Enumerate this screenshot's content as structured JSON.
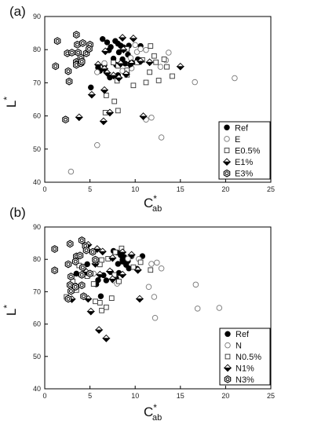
{
  "chart_data": [
    {
      "panel_label": "(a)",
      "type": "scatter",
      "xlabel": "C*ab",
      "xlabel_main": "C",
      "xlabel_sup": "*",
      "xlabel_sub": "ab",
      "ylabel": "L*",
      "ylabel_main": "L",
      "ylabel_sup": "*",
      "xlim": [
        0,
        25
      ],
      "ylim": [
        40,
        90
      ],
      "xticks": [
        "0",
        "5",
        "10",
        "15",
        "20",
        "25"
      ],
      "yticks": [
        "40",
        "50",
        "60",
        "70",
        "80",
        "90"
      ],
      "legend_position": "bottom-right",
      "series": [
        {
          "name": "Ref",
          "marker": "filled-circle",
          "points": [
            [
              6.4,
              83.2
            ],
            [
              6.9,
              82.2
            ],
            [
              7.3,
              80.8
            ],
            [
              7.8,
              82.6
            ],
            [
              8.1,
              81.8
            ],
            [
              8.4,
              81.2
            ],
            [
              8.7,
              80.7
            ],
            [
              7.1,
              79.8
            ],
            [
              8.2,
              79.2
            ],
            [
              9.2,
              78.5
            ],
            [
              7.6,
              77.3
            ],
            [
              8.6,
              77.1
            ],
            [
              6.6,
              75.4
            ],
            [
              5.9,
              74.6
            ],
            [
              7.9,
              75.4
            ],
            [
              8.9,
              75.8
            ],
            [
              9.6,
              76.2
            ],
            [
              10.3,
              77.1
            ],
            [
              10.6,
              81.1
            ],
            [
              9.3,
              81.2
            ],
            [
              8.1,
              72.3
            ],
            [
              7.2,
              71.6
            ],
            [
              6.1,
              73.6
            ],
            [
              5.1,
              68.6
            ]
          ]
        },
        {
          "name": "E",
          "marker": "open-circle",
          "points": [
            [
              5.8,
              51.2
            ],
            [
              2.9,
              43.2
            ],
            [
              12.9,
              53.5
            ],
            [
              11.2,
              58.9
            ],
            [
              11.8,
              59.5
            ],
            [
              16.6,
              70.2
            ],
            [
              21.0,
              71.4
            ],
            [
              12.8,
              74.8
            ],
            [
              13.4,
              76.8
            ],
            [
              13.7,
              79.1
            ],
            [
              10.2,
              79.3
            ],
            [
              11.2,
              79.9
            ],
            [
              10.0,
              81.4
            ],
            [
              9.5,
              77.5
            ],
            [
              8.6,
              73.6
            ],
            [
              5.8,
              73.2
            ],
            [
              6.6,
              75.9
            ],
            [
              9.6,
              74.4
            ],
            [
              10.6,
              80.2
            ]
          ]
        },
        {
          "name": "E0.5%",
          "marker": "open-square",
          "points": [
            [
              6.7,
              61.0
            ],
            [
              8.1,
              61.6
            ],
            [
              7.7,
              64.4
            ],
            [
              6.8,
              66.2
            ],
            [
              9.8,
              69.2
            ],
            [
              8.0,
              70.6
            ],
            [
              11.2,
              70.1
            ],
            [
              12.6,
              70.7
            ],
            [
              14.1,
              72.0
            ],
            [
              11.6,
              73.2
            ],
            [
              12.3,
              76.2
            ],
            [
              13.2,
              77.1
            ],
            [
              12.1,
              78.1
            ],
            [
              13.5,
              74.8
            ],
            [
              9.1,
              73.8
            ],
            [
              9.1,
              72.4
            ],
            [
              8.1,
              75.1
            ],
            [
              7.6,
              76.1
            ],
            [
              9.1,
              80.2
            ],
            [
              10.2,
              76.1
            ],
            [
              10.8,
              76.9
            ],
            [
              11.7,
              81.1
            ]
          ]
        },
        {
          "name": "E1%",
          "marker": "half-diamond",
          "points": [
            [
              6.5,
              58.4
            ],
            [
              10.9,
              59.9
            ],
            [
              3.8,
              59.6
            ],
            [
              7.2,
              61.0
            ],
            [
              5.2,
              66.4
            ],
            [
              6.6,
              67.8
            ],
            [
              9.4,
              75.6
            ],
            [
              6.9,
              73.0
            ],
            [
              7.6,
              72.2
            ],
            [
              8.2,
              71.5
            ],
            [
              9.0,
              72.6
            ],
            [
              9.6,
              75.9
            ],
            [
              10.6,
              76.5
            ],
            [
              11.6,
              76.2
            ],
            [
              6.6,
              74.2
            ],
            [
              5.9,
              75.5
            ],
            [
              15.0,
              74.9
            ],
            [
              8.7,
              80.0
            ],
            [
              9.8,
              83.4
            ],
            [
              8.6,
              83.6
            ],
            [
              8.4,
              75.8
            ],
            [
              6.7,
              79.5
            ]
          ]
        },
        {
          "name": "E3%",
          "marker": "dot-hexagon",
          "points": [
            [
              1.4,
              82.6
            ],
            [
              3.5,
              84.5
            ],
            [
              5.0,
              81.5
            ],
            [
              1.2,
              75.0
            ],
            [
              2.5,
              78.9
            ],
            [
              3.0,
              79.1
            ],
            [
              3.7,
              79.1
            ],
            [
              4.6,
              78.9
            ],
            [
              4.0,
              77.6
            ],
            [
              3.5,
              76.3
            ],
            [
              3.5,
              75.4
            ],
            [
              4.0,
              75.9
            ],
            [
              4.9,
              80.2
            ],
            [
              2.6,
              73.5
            ],
            [
              3.6,
              81.5
            ],
            [
              2.7,
              70.4
            ],
            [
              2.3,
              58.9
            ],
            [
              4.2,
              82.0
            ],
            [
              4.1,
              76.4
            ]
          ]
        }
      ]
    },
    {
      "panel_label": "(b)",
      "type": "scatter",
      "xlabel": "C*ab",
      "xlabel_main": "C",
      "xlabel_sup": "*",
      "xlabel_sub": "ab",
      "ylabel": "L*",
      "ylabel_main": "L",
      "ylabel_sup": "*",
      "xlim": [
        0,
        25
      ],
      "ylim": [
        40,
        90
      ],
      "xticks": [
        "0",
        "5",
        "10",
        "15",
        "20",
        "25"
      ],
      "yticks": [
        "40",
        "50",
        "60",
        "70",
        "80",
        "90"
      ],
      "legend_position": "bottom-right",
      "series": [
        {
          "name": "Ref",
          "marker": "filled-circle",
          "points": [
            [
              7.6,
              82.6
            ],
            [
              8.0,
              82.1
            ],
            [
              8.4,
              81.3
            ],
            [
              8.8,
              80.7
            ],
            [
              9.1,
              80.1
            ],
            [
              9.2,
              79.5
            ],
            [
              8.6,
              79.3
            ],
            [
              8.1,
              78.6
            ],
            [
              9.3,
              77.2
            ],
            [
              10.2,
              77.1
            ],
            [
              10.8,
              81.0
            ],
            [
              9.6,
              81.0
            ],
            [
              8.2,
              75.8
            ],
            [
              7.9,
              74.2
            ],
            [
              7.3,
              76.1
            ],
            [
              6.8,
              73.5
            ],
            [
              6.5,
              75.1
            ],
            [
              5.9,
              73.6
            ],
            [
              5.7,
              72.3
            ],
            [
              6.2,
              68.6
            ],
            [
              3.5,
              75.6
            ],
            [
              4.7,
              78.5
            ],
            [
              8.6,
              79.9
            ],
            [
              9.0,
              78.3
            ]
          ]
        },
        {
          "name": "N",
          "marker": "open-circle",
          "points": [
            [
              12.2,
              61.9
            ],
            [
              12.4,
              79.0
            ],
            [
              12.9,
              77.2
            ],
            [
              11.8,
              78.6
            ],
            [
              11.5,
              71.5
            ],
            [
              12.1,
              68.4
            ],
            [
              16.7,
              72.2
            ],
            [
              16.9,
              64.8
            ],
            [
              19.3,
              65.0
            ],
            [
              9.6,
              81.2
            ],
            [
              10.4,
              80.1
            ],
            [
              8.0,
              72.5
            ],
            [
              7.6,
              73.5
            ],
            [
              5.4,
              75.6
            ],
            [
              9.2,
              80.2
            ]
          ]
        },
        {
          "name": "N0.5%",
          "marker": "open-square",
          "points": [
            [
              2.4,
              68.4
            ],
            [
              3.5,
              70.5
            ],
            [
              3.1,
              73.2
            ],
            [
              3.8,
              78.1
            ],
            [
              4.7,
              74.8
            ],
            [
              5.4,
              72.4
            ],
            [
              5.6,
              67.0
            ],
            [
              6.3,
              64.2
            ],
            [
              6.1,
              66.6
            ],
            [
              6.8,
              65.2
            ],
            [
              7.4,
              68.0
            ],
            [
              8.2,
              73.2
            ],
            [
              7.7,
              75.2
            ],
            [
              6.3,
              79.8
            ],
            [
              7.0,
              80.2
            ],
            [
              8.5,
              83.4
            ],
            [
              7.8,
              82.2
            ],
            [
              9.8,
              77.6
            ],
            [
              10.6,
              79.1
            ],
            [
              11.7,
              76.7
            ],
            [
              6.1,
              78.4
            ]
          ]
        },
        {
          "name": "N1%",
          "marker": "half-diamond",
          "points": [
            [
              6.8,
              55.6
            ],
            [
              6.0,
              58.2
            ],
            [
              5.1,
              63.9
            ],
            [
              4.8,
              67.8
            ],
            [
              3.0,
              67.7
            ],
            [
              3.5,
              71.6
            ],
            [
              4.6,
              76.1
            ],
            [
              6.1,
              75.3
            ],
            [
              7.5,
              73.9
            ],
            [
              8.6,
              75.3
            ],
            [
              10.5,
              67.8
            ],
            [
              10.3,
              76.7
            ],
            [
              7.5,
              80.4
            ],
            [
              8.6,
              82.2
            ],
            [
              9.6,
              81.4
            ],
            [
              5.8,
              83.2
            ],
            [
              4.8,
              84.5
            ],
            [
              6.4,
              82.4
            ],
            [
              5.6,
              78.6
            ],
            [
              7.2,
              76.3
            ]
          ]
        },
        {
          "name": "N3%",
          "marker": "dot-hexagon",
          "points": [
            [
              1.1,
              83.2
            ],
            [
              1.1,
              76.6
            ],
            [
              2.8,
              84.8
            ],
            [
              3.5,
              80.9
            ],
            [
              4.1,
              85.9
            ],
            [
              4.5,
              84.1
            ],
            [
              3.9,
              81.2
            ],
            [
              3.4,
              79.3
            ],
            [
              4.2,
              77.5
            ],
            [
              2.6,
              78.5
            ],
            [
              2.9,
              74.7
            ],
            [
              2.8,
              72.1
            ],
            [
              3.4,
              71.5
            ],
            [
              2.9,
              70.2
            ],
            [
              2.6,
              67.8
            ],
            [
              4.3,
              68.6
            ],
            [
              4.1,
              72.0
            ],
            [
              4.1,
              75.2
            ],
            [
              5.0,
              75.6
            ],
            [
              5.3,
              82.3
            ],
            [
              5.6,
              79.9
            ],
            [
              4.6,
              82.8
            ]
          ]
        }
      ]
    }
  ]
}
